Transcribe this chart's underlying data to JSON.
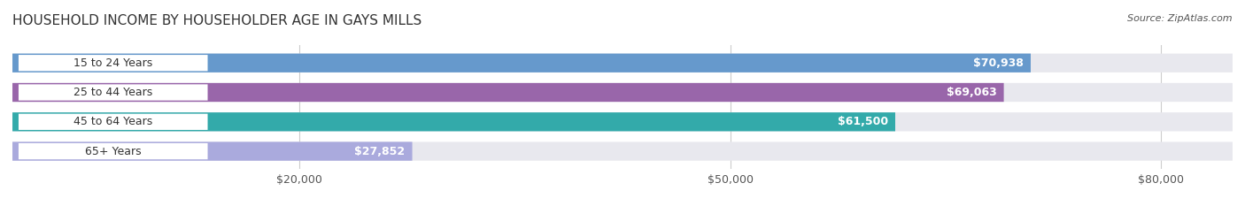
{
  "title": "HOUSEHOLD INCOME BY HOUSEHOLDER AGE IN GAYS MILLS",
  "source": "Source: ZipAtlas.com",
  "categories": [
    "15 to 24 Years",
    "25 to 44 Years",
    "45 to 64 Years",
    "65+ Years"
  ],
  "values": [
    70938,
    69063,
    61500,
    27852
  ],
  "bar_colors": [
    "#6699cc",
    "#9966aa",
    "#33aaaa",
    "#aaaadd"
  ],
  "value_labels": [
    "$70,938",
    "$69,063",
    "$61,500",
    "$27,852"
  ],
  "x_ticks": [
    20000,
    50000,
    80000
  ],
  "x_tick_labels": [
    "$20,000",
    "$50,000",
    "$80,000"
  ],
  "xlim": [
    0,
    85000
  ],
  "background_color": "#ffffff",
  "bar_background": "#eeeeee",
  "title_fontsize": 11,
  "label_fontsize": 9,
  "source_fontsize": 8
}
